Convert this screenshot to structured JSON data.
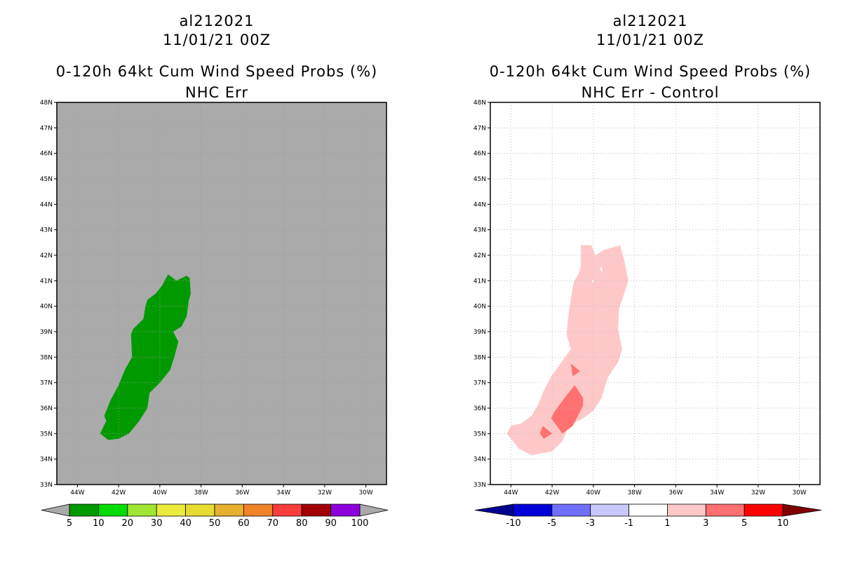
{
  "panels": [
    {
      "storm_id": "al212021",
      "datetime": "11/01/21 00Z",
      "product": "0-120h 64kt Cum Wind Speed Probs (%)",
      "subtitle": "NHC Err",
      "background_color": "#aaaaaa",
      "grid": false,
      "colorbar": {
        "labels": [
          "5",
          "10",
          "20",
          "30",
          "40",
          "50",
          "60",
          "70",
          "80",
          "90",
          "100"
        ],
        "colors": [
          "#009a00",
          "#00dc00",
          "#a0e632",
          "#ebeb3c",
          "#e6dc32",
          "#e6af2d",
          "#f08228",
          "#fa3c3c",
          "#a00000",
          "#8c00dc"
        ],
        "end_low": "#aaaaaa",
        "end_high": "#aaaaaa"
      },
      "fields": [
        {
          "name": "prob-region-5-10",
          "color": "#009a00",
          "polygon": [
            [
              -42.9,
              35.0
            ],
            [
              -42.5,
              34.75
            ],
            [
              -42.0,
              34.8
            ],
            [
              -41.5,
              35.0
            ],
            [
              -41.0,
              35.5
            ],
            [
              -40.6,
              36.0
            ],
            [
              -40.5,
              36.6
            ],
            [
              -40.0,
              37.0
            ],
            [
              -39.5,
              37.5
            ],
            [
              -39.3,
              38.0
            ],
            [
              -39.1,
              38.6
            ],
            [
              -39.35,
              39.0
            ],
            [
              -38.95,
              39.2
            ],
            [
              -38.7,
              39.6
            ],
            [
              -38.6,
              40.2
            ],
            [
              -38.5,
              40.5
            ],
            [
              -38.55,
              41.1
            ],
            [
              -38.7,
              41.2
            ],
            [
              -39.2,
              41.0
            ],
            [
              -39.6,
              41.25
            ],
            [
              -39.9,
              40.8
            ],
            [
              -40.2,
              40.5
            ],
            [
              -40.6,
              40.25
            ],
            [
              -40.7,
              40.0
            ],
            [
              -40.8,
              39.5
            ],
            [
              -41.3,
              39.1
            ],
            [
              -41.4,
              38.9
            ],
            [
              -41.35,
              38.0
            ],
            [
              -41.7,
              37.5
            ],
            [
              -42.0,
              36.9
            ],
            [
              -42.4,
              36.3
            ],
            [
              -42.7,
              35.7
            ],
            [
              -42.6,
              35.5
            ]
          ]
        }
      ]
    },
    {
      "storm_id": "al212021",
      "datetime": "11/01/21 00Z",
      "product": "0-120h 64kt Cum Wind Speed Probs (%)",
      "subtitle": "NHC Err - Control",
      "background_color": "#ffffff",
      "grid": true,
      "colorbar": {
        "labels": [
          "-10",
          "-5",
          "-3",
          "-1",
          "1",
          "3",
          "5",
          "10"
        ],
        "colors": [
          "#0000d8",
          "#7070ff",
          "#c8c8ff",
          "#ffffff",
          "#ffc8c8",
          "#ff7070",
          "#ff0000"
        ],
        "end_low": "#000090",
        "end_high": "#800000"
      },
      "fields": [
        {
          "name": "diff-region-1-3",
          "color": "#ffc8c8",
          "polygon": [
            [
              -44.2,
              35.0
            ],
            [
              -43.6,
              34.4
            ],
            [
              -43.0,
              34.15
            ],
            [
              -42.0,
              34.3
            ],
            [
              -41.5,
              34.7
            ],
            [
              -41.2,
              35.3
            ],
            [
              -40.5,
              35.6
            ],
            [
              -40.0,
              35.9
            ],
            [
              -39.6,
              36.4
            ],
            [
              -39.3,
              37.2
            ],
            [
              -38.8,
              37.8
            ],
            [
              -38.6,
              38.3
            ],
            [
              -38.8,
              39.1
            ],
            [
              -38.75,
              39.9
            ],
            [
              -38.5,
              40.5
            ],
            [
              -38.3,
              41.0
            ],
            [
              -38.5,
              41.8
            ],
            [
              -38.7,
              42.4
            ],
            [
              -39.5,
              42.2
            ],
            [
              -39.9,
              42.0
            ],
            [
              -40.1,
              42.4
            ],
            [
              -40.6,
              42.4
            ],
            [
              -40.6,
              41.6
            ],
            [
              -40.7,
              41.3
            ],
            [
              -40.95,
              40.95
            ],
            [
              -41.05,
              40.5
            ],
            [
              -41.2,
              39.7
            ],
            [
              -41.3,
              38.9
            ],
            [
              -41.1,
              38.3
            ],
            [
              -41.55,
              37.8
            ],
            [
              -42.0,
              37.3
            ],
            [
              -42.4,
              36.7
            ],
            [
              -42.7,
              36.1
            ],
            [
              -43.0,
              35.7
            ],
            [
              -43.5,
              35.4
            ],
            [
              -44.0,
              35.3
            ]
          ],
          "holes": [
            [
              [
                -39.7,
                41.5
              ],
              [
                -39.55,
                41.3
              ],
              [
                -39.6,
                41.55
              ]
            ],
            [
              [
                -40.1,
                41.0
              ],
              [
                -39.95,
                41.0
              ],
              [
                -40.02,
                40.92
              ]
            ]
          ]
        },
        {
          "name": "diff-region-3-5-main",
          "color": "#ff7070",
          "polygon": [
            [
              -42.05,
              35.6
            ],
            [
              -41.5,
              35.0
            ],
            [
              -41.0,
              35.3
            ],
            [
              -40.5,
              36.1
            ],
            [
              -40.5,
              36.4
            ],
            [
              -40.9,
              36.9
            ],
            [
              -41.3,
              36.5
            ],
            [
              -41.9,
              35.85
            ]
          ]
        },
        {
          "name": "diff-region-3-5-north",
          "color": "#ff7070",
          "polygon": [
            [
              -41.1,
              37.75
            ],
            [
              -40.65,
              37.45
            ],
            [
              -41.0,
              37.25
            ]
          ]
        },
        {
          "name": "diff-region-3-5-south",
          "color": "#ff7070",
          "polygon": [
            [
              -42.6,
              35.0
            ],
            [
              -42.45,
              35.3
            ],
            [
              -42.0,
              35.0
            ],
            [
              -42.4,
              34.8
            ]
          ]
        }
      ]
    }
  ],
  "map": {
    "lon_min": -45,
    "lon_max": -29,
    "lat_min": 33,
    "lat_max": 48,
    "x_ticks": [
      -44,
      -42,
      -40,
      -38,
      -36,
      -34,
      -32,
      -30
    ],
    "x_tick_labels": [
      "44W",
      "42W",
      "40W",
      "38W",
      "36W",
      "34W",
      "32W",
      "30W"
    ],
    "y_ticks": [
      33,
      34,
      35,
      36,
      37,
      38,
      39,
      40,
      41,
      42,
      43,
      44,
      45,
      46,
      47,
      48
    ],
    "y_tick_labels": [
      "33N",
      "34N",
      "35N",
      "36N",
      "37N",
      "38N",
      "39N",
      "40N",
      "41N",
      "42N",
      "43N",
      "44N",
      "45N",
      "46N",
      "47N",
      "48N"
    ]
  }
}
